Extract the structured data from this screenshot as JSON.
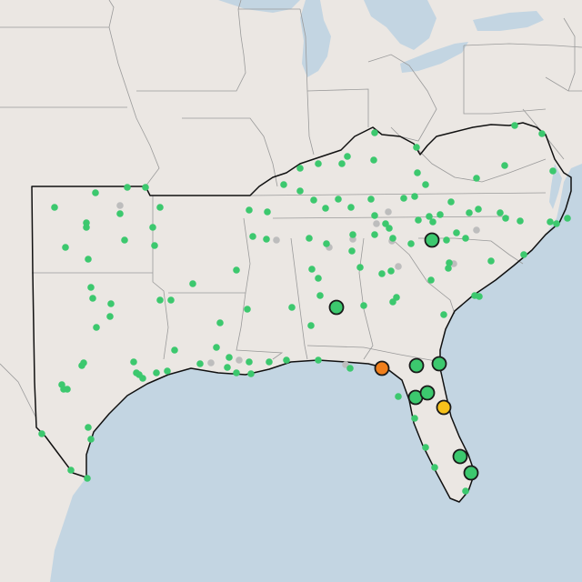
{
  "map": {
    "colors": {
      "land": "#ebe7e3",
      "water": "#c3d5e2",
      "state_border": "#9a9a9a",
      "region_outline": "#111111",
      "marker_green": "#3cc86e",
      "marker_gray": "#bdbdbd",
      "marker_orange": "#f07f1c",
      "marker_yellow": "#f6c11b",
      "marker_stroke": "#1a1a1a"
    }
  }
}
